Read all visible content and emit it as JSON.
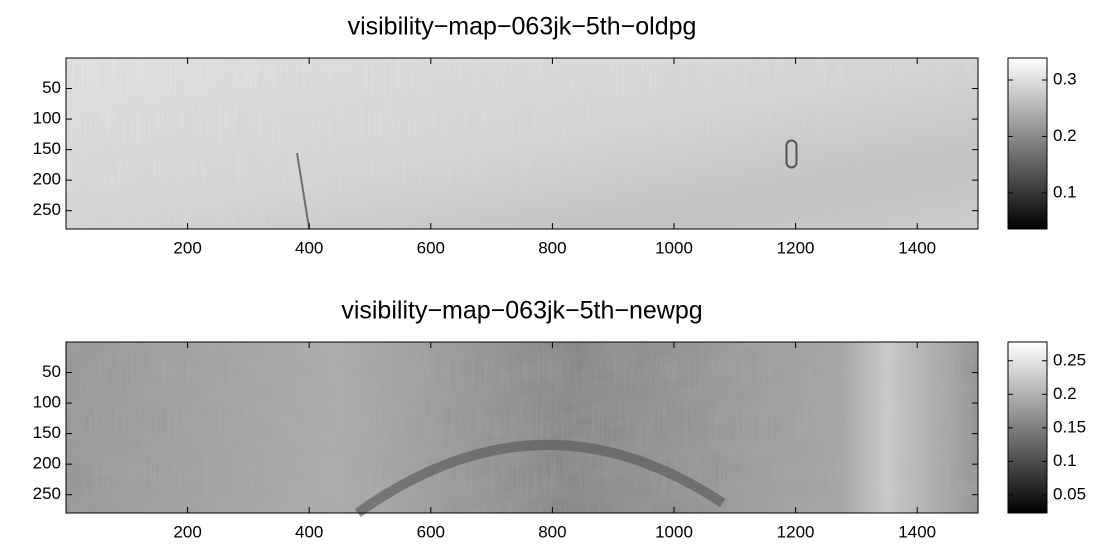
{
  "chart_data": [
    {
      "type": "heatmap",
      "title": "visibility−map−063jk−5th−oldpg",
      "colormap": "gray",
      "xlim": [
        0,
        1500
      ],
      "xticks": [
        200,
        400,
        600,
        800,
        1000,
        1200,
        1400
      ],
      "ylim": [
        0,
        280
      ],
      "yticks": [
        50,
        100,
        150,
        200,
        250
      ],
      "reverse_y": true,
      "clim": [
        0.036,
        0.339
      ],
      "cticks": [
        0.1,
        0.2,
        0.3
      ]
    },
    {
      "type": "heatmap",
      "title": "visibility−map−063jk−5th−newpg",
      "colormap": "gray",
      "xlim": [
        0,
        1500
      ],
      "xticks": [
        200,
        400,
        600,
        800,
        1000,
        1200,
        1400
      ],
      "ylim": [
        0,
        280
      ],
      "yticks": [
        50,
        100,
        150,
        200,
        250
      ],
      "reverse_y": true,
      "clim": [
        0.023,
        0.278
      ],
      "cticks": [
        0.05,
        0.1,
        0.15,
        0.2,
        0.25
      ]
    }
  ]
}
